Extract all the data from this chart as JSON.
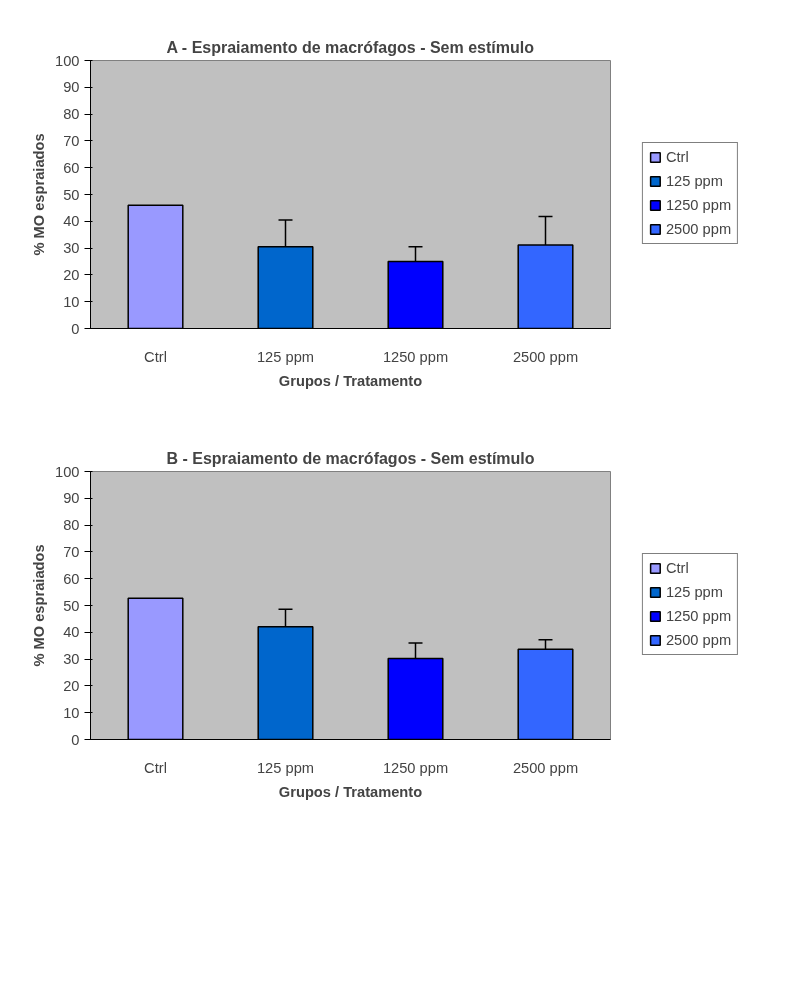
{
  "chart_data": [
    {
      "type": "bar",
      "title": "A - Espraiamento de macrófagos - Sem estímulo",
      "xlabel": "Grupos / Tratamento",
      "ylabel": "% MO espraiados",
      "categories": [
        "Ctrl",
        "125 ppm",
        "1250 ppm",
        "2500 ppm"
      ],
      "series": [
        {
          "name": "Ctrl",
          "color": "#9999ff",
          "values": [
            46,
            null,
            null,
            null
          ]
        },
        {
          "name": "125 ppm",
          "color": "#0066cc",
          "values": [
            null,
            30.5,
            null,
            null
          ],
          "errors": [
            null,
            [
              30.5,
              40.5
            ],
            null,
            null
          ]
        },
        {
          "name": "1250 ppm",
          "color": "#0000ff",
          "values": [
            null,
            null,
            25,
            null
          ],
          "errors": [
            null,
            null,
            [
              25,
              30.5
            ],
            null
          ]
        },
        {
          "name": "2500 ppm",
          "color": "#3366ff",
          "values": [
            null,
            null,
            null,
            31.2
          ],
          "errors": [
            null,
            null,
            null,
            [
              31.2,
              41.8
            ]
          ]
        }
      ],
      "ylim": [
        0,
        100
      ],
      "yticks": [
        0,
        10,
        20,
        30,
        40,
        50,
        60,
        70,
        80,
        90,
        100
      ],
      "grid": false,
      "legend": "right"
    },
    {
      "type": "bar",
      "title": "B - Espraiamento de macrófagos - Sem estímulo",
      "xlabel": "Grupos / Tratamento",
      "ylabel": "% MO espraiados",
      "categories": [
        "Ctrl",
        "125 ppm",
        "1250 ppm",
        "2500 ppm"
      ],
      "series": [
        {
          "name": "Ctrl",
          "color": "#9999ff",
          "values": [
            52.7,
            null,
            null,
            null
          ]
        },
        {
          "name": "125 ppm",
          "color": "#0066cc",
          "values": [
            null,
            42.1,
            null,
            null
          ],
          "errors": [
            null,
            [
              42.1,
              48.6
            ],
            null,
            null
          ]
        },
        {
          "name": "1250 ppm",
          "color": "#0000ff",
          "values": [
            null,
            null,
            30.2,
            null
          ],
          "errors": [
            null,
            null,
            [
              30.2,
              36
            ],
            null
          ]
        },
        {
          "name": "2500 ppm",
          "color": "#3366ff",
          "values": [
            null,
            null,
            null,
            33.7
          ],
          "errors": [
            null,
            null,
            null,
            [
              33.7,
              37.2
            ]
          ]
        }
      ],
      "ylim": [
        0,
        100
      ],
      "yticks": [
        0,
        10,
        20,
        30,
        40,
        50,
        60,
        70,
        80,
        90,
        100
      ],
      "grid": false,
      "legend": "right"
    }
  ]
}
